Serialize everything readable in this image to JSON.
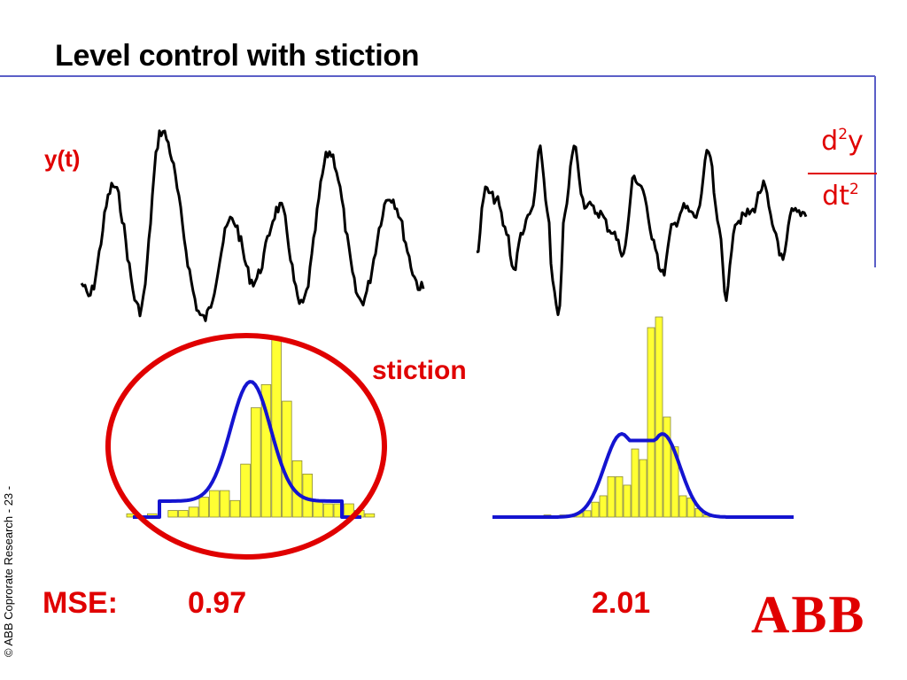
{
  "title": "Level control with stiction",
  "signal_label": "y(t)",
  "derivative": {
    "numerator": "d",
    "numerator_exp": "2",
    "numerator_var": "y",
    "denominator": "dt",
    "denominator_exp": "2"
  },
  "annotation": "stiction",
  "mse": {
    "label": "MSE:",
    "left_value": "0.97",
    "right_value": "2.01"
  },
  "footer": "© ABB Coprorate Research  - 23 -",
  "logo": "ABB",
  "colors": {
    "accent_red": "#e00000",
    "signal_black": "#000000",
    "histogram_yellow": "#ffff33",
    "fit_blue": "#1414d0",
    "frame_blue": "#5b5fc7"
  },
  "histograms": {
    "left": [
      1,
      0,
      1,
      0,
      2,
      2,
      3,
      6,
      8,
      8,
      5,
      16,
      33,
      40,
      54,
      35,
      17,
      13,
      5,
      4,
      4,
      4,
      2,
      1
    ],
    "right": [
      1,
      0,
      1,
      1,
      2,
      3,
      7,
      10,
      19,
      19,
      15,
      32,
      27,
      89,
      94,
      47,
      33,
      10,
      9,
      4,
      1
    ]
  }
}
